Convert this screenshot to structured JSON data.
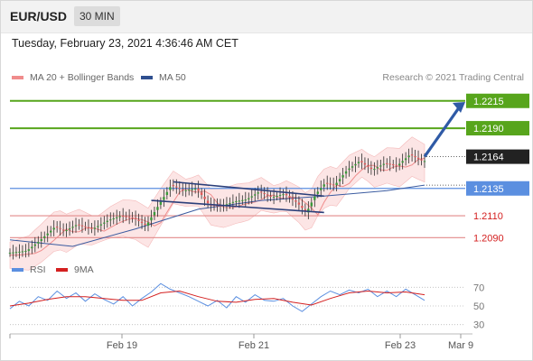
{
  "header": {
    "symbol": "EUR/USD",
    "timeframe": "30 MIN",
    "timestamp": "Tuesday, February 23, 2021 4:36:46 AM CET"
  },
  "legend": {
    "ma20": {
      "label": "MA 20 + Bollinger Bands",
      "color": "#f08c8c"
    },
    "ma50": {
      "label": "MA 50",
      "color": "#2f4f8f"
    },
    "credit": "Research © 2021 Trading Central"
  },
  "rsi_legend": {
    "rsi": {
      "label": "RSI",
      "color": "#5b8fe0"
    },
    "ma9": {
      "label": "9MA",
      "color": "#d42020"
    }
  },
  "colors": {
    "candle_up": "#3a9a3a",
    "candle_down": "#e05a5a",
    "resistance_line": "#57a51c",
    "pivot_line": "#5b8fe0",
    "support_line": "#e28a8a",
    "arrow": "#2f5aa6",
    "band_fill": "#fbdcdc",
    "channel": "#2b3f7a"
  },
  "chart_data": [
    {
      "type": "candlestick",
      "title": "EUR/USD",
      "x_ticks": [
        "Feb 19",
        "Feb 21",
        "Feb 23",
        "Mar 9"
      ],
      "ylim": [
        1.2068,
        1.2228
      ],
      "levels": [
        {
          "label": "1.2215",
          "value": 1.2215,
          "role": "resistance",
          "color": "#57a51c",
          "label_style": "box"
        },
        {
          "label": "1.2190",
          "value": 1.219,
          "role": "resistance",
          "color": "#57a51c",
          "label_style": "box"
        },
        {
          "label": "1.2164",
          "value": 1.2164,
          "role": "last-price",
          "color": "#222222",
          "label_style": "box"
        },
        {
          "label": "1.2135",
          "value": 1.2135,
          "role": "pivot",
          "color": "#5b8fe0",
          "label_style": "box"
        },
        {
          "label": "1.2110",
          "value": 1.211,
          "role": "support",
          "color": "#e28a8a",
          "label_style": "text"
        },
        {
          "label": "1.2090",
          "value": 1.209,
          "role": "support",
          "color": "#e28a8a",
          "label_style": "text"
        }
      ],
      "price_path": [
        [
          0,
          1.2076
        ],
        [
          6,
          1.2078
        ],
        [
          10,
          1.2087
        ],
        [
          15,
          1.21
        ],
        [
          18,
          1.2096
        ],
        [
          22,
          1.2102
        ],
        [
          27,
          1.2098
        ],
        [
          32,
          1.2106
        ],
        [
          36,
          1.211
        ],
        [
          40,
          1.2108
        ],
        [
          44,
          1.2101
        ],
        [
          48,
          1.212
        ],
        [
          52,
          1.2138
        ],
        [
          56,
          1.2133
        ],
        [
          60,
          1.2135
        ],
        [
          64,
          1.212
        ],
        [
          68,
          1.2119
        ],
        [
          72,
          1.2123
        ],
        [
          76,
          1.2125
        ],
        [
          80,
          1.2132
        ],
        [
          84,
          1.2127
        ],
        [
          88,
          1.213
        ],
        [
          92,
          1.2122
        ],
        [
          95,
          1.2113
        ],
        [
          98,
          1.213
        ],
        [
          101,
          1.214
        ],
        [
          104,
          1.2138
        ],
        [
          108,
          1.2152
        ],
        [
          112,
          1.216
        ],
        [
          116,
          1.2152
        ],
        [
          120,
          1.2158
        ],
        [
          124,
          1.2156
        ],
        [
          128,
          1.2166
        ],
        [
          132,
          1.216
        ]
      ],
      "ma50": [
        [
          0,
          1.2088
        ],
        [
          20,
          1.2082
        ],
        [
          40,
          1.2098
        ],
        [
          60,
          1.2116
        ],
        [
          80,
          1.2124
        ],
        [
          100,
          1.2128
        ],
        [
          120,
          1.2133
        ],
        [
          132,
          1.2138
        ]
      ],
      "channel_upper": [
        [
          52,
          1.2141
        ],
        [
          100,
          1.2128
        ]
      ],
      "channel_lower": [
        [
          45,
          1.2124
        ],
        [
          100,
          1.2113
        ]
      ],
      "arrow": [
        [
          132,
          1.2164
        ],
        [
          140,
          1.2214
        ]
      ]
    },
    {
      "type": "line",
      "title": "RSI",
      "y_ticks": [
        70,
        50,
        30
      ],
      "ylim": [
        20,
        80
      ],
      "series": [
        {
          "name": "RSI",
          "values": [
            [
              0,
              47
            ],
            [
              3,
              55
            ],
            [
              6,
              50
            ],
            [
              9,
              60
            ],
            [
              12,
              56
            ],
            [
              15,
              66
            ],
            [
              18,
              58
            ],
            [
              21,
              64
            ],
            [
              24,
              55
            ],
            [
              27,
              63
            ],
            [
              30,
              57
            ],
            [
              33,
              52
            ],
            [
              36,
              60
            ],
            [
              39,
              50
            ],
            [
              42,
              58
            ],
            [
              45,
              65
            ],
            [
              48,
              74
            ],
            [
              51,
              68
            ],
            [
              54,
              64
            ],
            [
              57,
              60
            ],
            [
              60,
              55
            ],
            [
              63,
              50
            ],
            [
              66,
              56
            ],
            [
              69,
              48
            ],
            [
              72,
              60
            ],
            [
              75,
              54
            ],
            [
              78,
              62
            ],
            [
              81,
              56
            ],
            [
              84,
              55
            ],
            [
              87,
              58
            ],
            [
              90,
              50
            ],
            [
              93,
              44
            ],
            [
              96,
              52
            ],
            [
              99,
              60
            ],
            [
              102,
              66
            ],
            [
              105,
              62
            ],
            [
              108,
              67
            ],
            [
              111,
              64
            ],
            [
              114,
              68
            ],
            [
              117,
              60
            ],
            [
              120,
              66
            ],
            [
              123,
              60
            ],
            [
              126,
              68
            ],
            [
              129,
              62
            ],
            [
              132,
              56
            ]
          ]
        },
        {
          "name": "9MA",
          "values": [
            [
              0,
              50
            ],
            [
              6,
              53
            ],
            [
              12,
              57
            ],
            [
              18,
              60
            ],
            [
              24,
              60
            ],
            [
              30,
              58
            ],
            [
              36,
              56
            ],
            [
              42,
              56
            ],
            [
              48,
              64
            ],
            [
              54,
              66
            ],
            [
              60,
              60
            ],
            [
              66,
              55
            ],
            [
              72,
              54
            ],
            [
              78,
              57
            ],
            [
              84,
              58
            ],
            [
              90,
              54
            ],
            [
              96,
              51
            ],
            [
              102,
              58
            ],
            [
              108,
              64
            ],
            [
              114,
              66
            ],
            [
              120,
              64
            ],
            [
              126,
              65
            ],
            [
              132,
              62
            ]
          ]
        }
      ]
    }
  ]
}
